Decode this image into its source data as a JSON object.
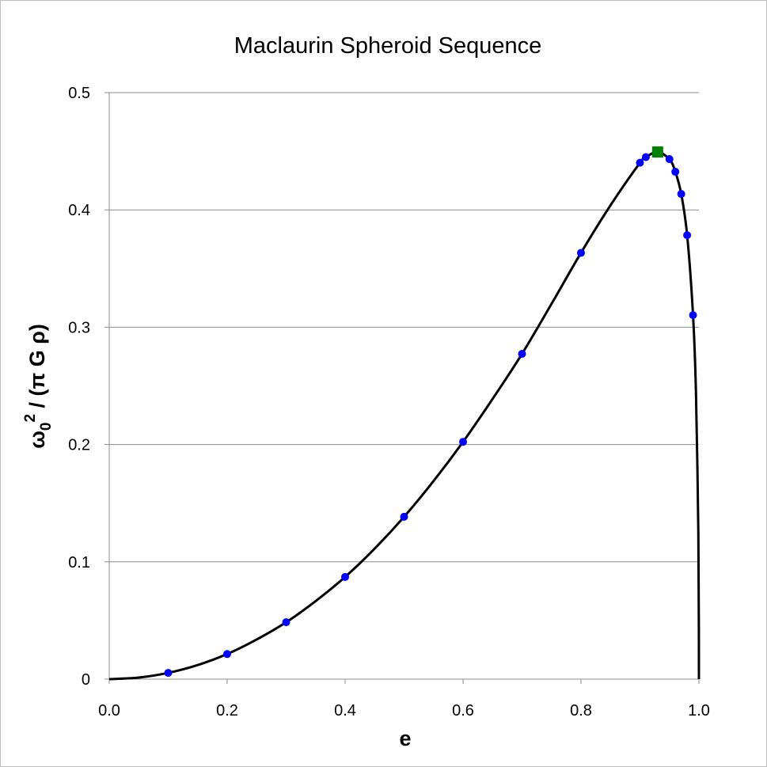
{
  "chart_data": {
    "type": "line",
    "title": "Maclaurin Spheroid Sequence",
    "xlabel": "e",
    "ylabel": {
      "main": "ω",
      "sub": "0",
      "sup": "2",
      "rest": " / (π G ρ)"
    },
    "xlim": [
      0,
      1.0
    ],
    "ylim": [
      0,
      0.5
    ],
    "xticks": [
      "0.0",
      "0.2",
      "0.4",
      "0.6",
      "0.8",
      "1.0"
    ],
    "yticks": [
      "0",
      "0.1",
      "0.2",
      "0.3",
      "0.4",
      "0.5"
    ],
    "grid": "horizontal",
    "series": [
      {
        "style": "line",
        "color": "#000000",
        "x": [
          0,
          0.05,
          0.1,
          0.15,
          0.2,
          0.25,
          0.3,
          0.35,
          0.4,
          0.45,
          0.5,
          0.55,
          0.6,
          0.65,
          0.7,
          0.75,
          0.8,
          0.85,
          0.9,
          0.91,
          0.93,
          0.95,
          0.96,
          0.97,
          0.98,
          0.99,
          0.995,
          0.999,
          0.9999,
          1.0
        ],
        "y": [
          0,
          0.00133,
          0.00534,
          0.012,
          0.0214,
          0.0338,
          0.0485,
          0.0665,
          0.0871,
          0.1112,
          0.1384,
          0.1689,
          0.2023,
          0.2388,
          0.2773,
          0.3199,
          0.3634,
          0.4039,
          0.4402,
          0.445,
          0.4494,
          0.4433,
          0.4325,
          0.4136,
          0.3785,
          0.3103,
          0.2437,
          0.1251,
          0.043,
          0
        ]
      },
      {
        "style": "markers",
        "marker": "circle",
        "color": "#0000ff",
        "x": [
          0.1,
          0.2,
          0.3,
          0.4,
          0.5,
          0.6,
          0.7,
          0.8,
          0.9,
          0.91,
          0.95,
          0.96,
          0.97,
          0.98,
          0.99
        ],
        "y": [
          0.00534,
          0.0214,
          0.0485,
          0.0871,
          0.1384,
          0.2023,
          0.2773,
          0.3634,
          0.4402,
          0.445,
          0.4433,
          0.4325,
          0.4136,
          0.3785,
          0.3103
        ]
      },
      {
        "style": "markers",
        "marker": "square",
        "color": "#008000",
        "x": [
          0.93
        ],
        "y": [
          0.4494
        ]
      }
    ]
  }
}
